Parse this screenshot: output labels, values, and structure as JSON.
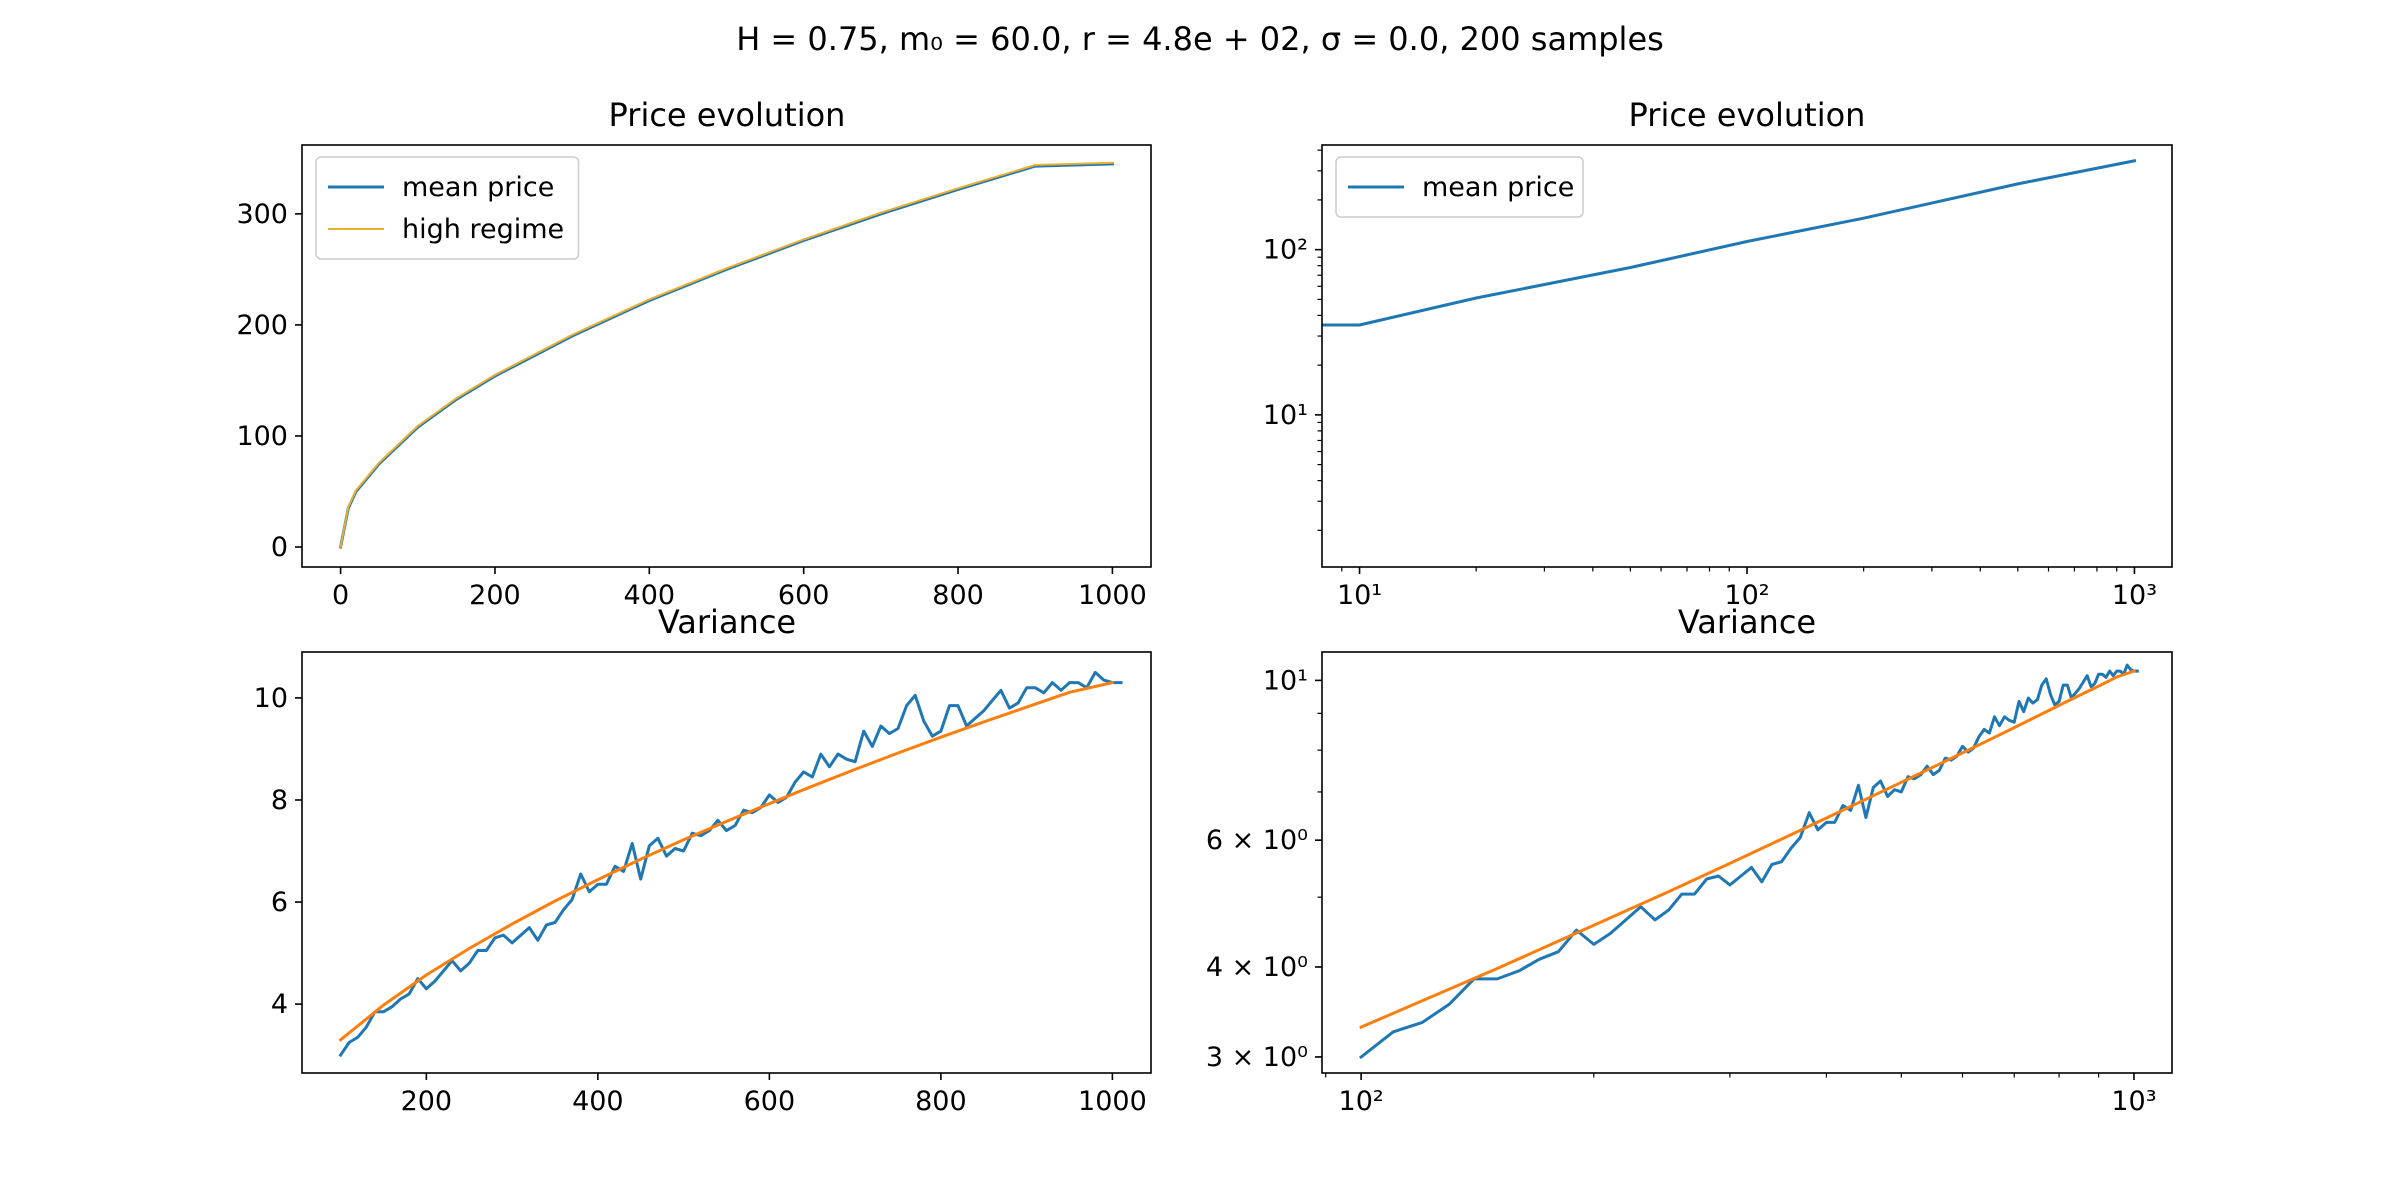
{
  "figure": {
    "suptitle": "H = 0.75, m₀ = 60.0, r = 4.8e + 02, σ = 0.0,  200 samples"
  },
  "colors": {
    "blue": "#1f77b4",
    "orange": "#ff7f0e",
    "gold": "#e8b030"
  },
  "chart_data": [
    {
      "type": "line",
      "title": "Price evolution",
      "xscale": "linear",
      "yscale": "linear",
      "xlim": [
        -50,
        1050
      ],
      "ylim": [
        -18,
        362
      ],
      "xticks": [
        0,
        200,
        400,
        600,
        800,
        1000
      ],
      "xtick_labels": [
        "0",
        "200",
        "400",
        "600",
        "800",
        "1000"
      ],
      "yticks": [
        0,
        100,
        200,
        300
      ],
      "ytick_labels": [
        "0",
        "100",
        "200",
        "300"
      ],
      "legend": "top-left",
      "series": [
        {
          "name": "mean price",
          "color": "#1f77b4",
          "width": 3,
          "x": [
            0,
            10,
            20,
            50,
            100,
            150,
            200,
            300,
            400,
            500,
            600,
            700,
            800,
            900,
            1000
          ],
          "y": [
            0,
            35,
            50,
            75,
            108,
            133,
            154,
            190,
            222,
            250,
            276,
            300,
            322,
            343,
            345
          ]
        },
        {
          "name": "high regime",
          "color": "#e8b030",
          "width": 2,
          "x": [
            0,
            10,
            20,
            50,
            100,
            150,
            200,
            300,
            400,
            500,
            600,
            700,
            800,
            900,
            1000
          ],
          "y": [
            0,
            36,
            51,
            76,
            109,
            134,
            155,
            191,
            223,
            251,
            277,
            301,
            323,
            344,
            346
          ]
        }
      ]
    },
    {
      "type": "line",
      "title": "Price evolution",
      "xscale": "log",
      "yscale": "log",
      "xlim": [
        8.0,
        1250
      ],
      "ylim": [
        1.2,
        430
      ],
      "xticks": [
        10,
        100,
        1000
      ],
      "xtick_labels": [
        "10¹",
        "10²",
        "10³"
      ],
      "yticks": [
        10,
        100
      ],
      "ytick_labels": [
        "10¹",
        "10²"
      ],
      "legend": "top-left",
      "series": [
        {
          "name": "mean price",
          "color": "#1f77b4",
          "width": 3,
          "x": [
            8.0,
            10,
            20,
            50,
            100,
            200,
            500,
            1000
          ],
          "y": [
            35,
            35,
            51,
            78,
            112,
            155,
            250,
            345
          ]
        }
      ]
    },
    {
      "type": "line",
      "title": "Variance",
      "xscale": "linear",
      "yscale": "linear",
      "xlim": [
        55,
        1045
      ],
      "ylim": [
        2.65,
        10.9
      ],
      "xticks": [
        200,
        400,
        600,
        800,
        1000
      ],
      "xtick_labels": [
        "200",
        "400",
        "600",
        "800",
        "1000"
      ],
      "yticks": [
        4,
        6,
        8,
        10
      ],
      "ytick_labels": [
        "4",
        "6",
        "8",
        "10"
      ],
      "legend": "none",
      "series": [
        {
          "color": "#1f77b4",
          "width": 3,
          "x": [
            100,
            110,
            120,
            130,
            140,
            150,
            160,
            170,
            180,
            190,
            200,
            210,
            220,
            230,
            240,
            250,
            260,
            270,
            280,
            290,
            300,
            310,
            320,
            330,
            340,
            350,
            360,
            370,
            380,
            390,
            400,
            410,
            420,
            430,
            440,
            450,
            460,
            470,
            480,
            490,
            500,
            510,
            520,
            530,
            540,
            550,
            560,
            570,
            580,
            590,
            600,
            610,
            620,
            630,
            640,
            650,
            660,
            670,
            680,
            690,
            700,
            710,
            720,
            730,
            740,
            750,
            760,
            770,
            780,
            790,
            800,
            810,
            820,
            830,
            840,
            850,
            860,
            870,
            880,
            890,
            900,
            910,
            920,
            930,
            940,
            950,
            960,
            970,
            980,
            990,
            1000,
            1010
          ],
          "y": [
            3.0,
            3.25,
            3.35,
            3.55,
            3.85,
            3.85,
            3.95,
            4.1,
            4.2,
            4.5,
            4.3,
            4.45,
            4.65,
            4.85,
            4.65,
            4.8,
            5.05,
            5.05,
            5.3,
            5.35,
            5.2,
            5.35,
            5.5,
            5.25,
            5.55,
            5.6,
            5.85,
            6.05,
            6.55,
            6.2,
            6.35,
            6.35,
            6.7,
            6.6,
            7.15,
            6.45,
            7.1,
            7.25,
            6.9,
            7.05,
            7.0,
            7.35,
            7.3,
            7.4,
            7.6,
            7.4,
            7.5,
            7.8,
            7.75,
            7.85,
            8.1,
            7.95,
            8.05,
            8.35,
            8.55,
            8.45,
            8.9,
            8.65,
            8.9,
            8.8,
            8.75,
            9.35,
            9.05,
            9.45,
            9.3,
            9.4,
            9.85,
            10.05,
            9.55,
            9.25,
            9.35,
            9.85,
            9.85,
            9.45,
            9.6,
            9.75,
            9.95,
            10.15,
            9.8,
            9.9,
            10.2,
            10.2,
            10.1,
            10.3,
            10.15,
            10.3,
            10.3,
            10.2,
            10.5,
            10.35,
            10.3,
            10.3
          ]
        },
        {
          "color": "#ff7f0e",
          "width": 3,
          "x": [
            100,
            150,
            200,
            250,
            300,
            350,
            400,
            450,
            500,
            550,
            600,
            650,
            700,
            750,
            800,
            850,
            900,
            950,
            1000
          ],
          "y": [
            3.3,
            3.98,
            4.57,
            5.09,
            5.57,
            6.02,
            6.44,
            6.84,
            7.22,
            7.58,
            7.93,
            8.27,
            8.6,
            8.92,
            9.23,
            9.53,
            9.82,
            10.11,
            10.3
          ]
        }
      ]
    },
    {
      "type": "line",
      "title": "Variance",
      "xscale": "log",
      "yscale": "log",
      "xlim": [
        89,
        1120
      ],
      "ylim": [
        2.85,
        10.95
      ],
      "xticks": [
        100,
        1000
      ],
      "xtick_labels": [
        "10²",
        "10³"
      ],
      "yticks": [
        3,
        4,
        6,
        10
      ],
      "ytick_labels": [
        "3 × 10⁰",
        "4 × 10⁰",
        "6 × 10⁰",
        "10¹"
      ],
      "legend": "none",
      "series": [
        {
          "color": "#1f77b4",
          "width": 3,
          "x": [
            100,
            110,
            120,
            130,
            140,
            150,
            160,
            170,
            180,
            190,
            200,
            210,
            220,
            230,
            240,
            250,
            260,
            270,
            280,
            290,
            300,
            310,
            320,
            330,
            340,
            350,
            360,
            370,
            380,
            390,
            400,
            410,
            420,
            430,
            440,
            450,
            460,
            470,
            480,
            490,
            500,
            510,
            520,
            530,
            540,
            550,
            560,
            570,
            580,
            590,
            600,
            610,
            620,
            630,
            640,
            650,
            660,
            670,
            680,
            690,
            700,
            710,
            720,
            730,
            740,
            750,
            760,
            770,
            780,
            790,
            800,
            810,
            820,
            830,
            840,
            850,
            860,
            870,
            880,
            890,
            900,
            910,
            920,
            930,
            940,
            950,
            960,
            970,
            980,
            990,
            1000,
            1010
          ],
          "y": [
            3.0,
            3.25,
            3.35,
            3.55,
            3.85,
            3.85,
            3.95,
            4.1,
            4.2,
            4.5,
            4.3,
            4.45,
            4.65,
            4.85,
            4.65,
            4.8,
            5.05,
            5.05,
            5.3,
            5.35,
            5.2,
            5.35,
            5.5,
            5.25,
            5.55,
            5.6,
            5.85,
            6.05,
            6.55,
            6.2,
            6.35,
            6.35,
            6.7,
            6.6,
            7.15,
            6.45,
            7.1,
            7.25,
            6.9,
            7.05,
            7.0,
            7.35,
            7.3,
            7.4,
            7.6,
            7.4,
            7.5,
            7.8,
            7.75,
            7.85,
            8.1,
            7.95,
            8.05,
            8.35,
            8.55,
            8.45,
            8.9,
            8.65,
            8.9,
            8.8,
            8.75,
            9.35,
            9.05,
            9.45,
            9.3,
            9.4,
            9.85,
            10.05,
            9.55,
            9.25,
            9.35,
            9.85,
            9.85,
            9.45,
            9.6,
            9.75,
            9.95,
            10.15,
            9.8,
            9.9,
            10.2,
            10.2,
            10.1,
            10.3,
            10.15,
            10.3,
            10.3,
            10.2,
            10.5,
            10.35,
            10.3,
            10.3
          ]
        },
        {
          "color": "#ff7f0e",
          "width": 3,
          "x": [
            100,
            150,
            200,
            250,
            300,
            350,
            400,
            450,
            500,
            550,
            600,
            650,
            700,
            750,
            800,
            850,
            900,
            950,
            1000
          ],
          "y": [
            3.3,
            3.98,
            4.57,
            5.09,
            5.57,
            6.02,
            6.44,
            6.84,
            7.22,
            7.58,
            7.93,
            8.27,
            8.6,
            8.92,
            9.23,
            9.53,
            9.82,
            10.11,
            10.3
          ]
        }
      ]
    }
  ]
}
